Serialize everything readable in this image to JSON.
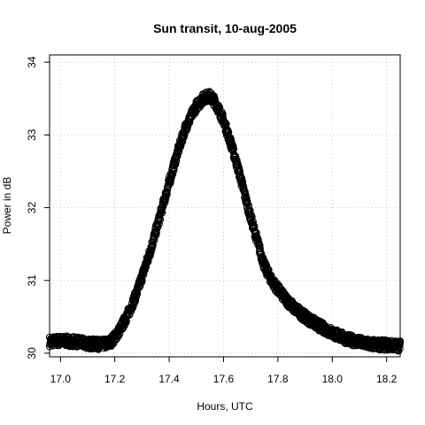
{
  "chart_data": {
    "type": "scatter",
    "title": "Sun transit, 10-aug-2005",
    "xlabel": "Hours, UTC",
    "ylabel": "Power in dB",
    "xlim": [
      16.96,
      18.25
    ],
    "ylim": [
      29.95,
      34.1
    ],
    "xticks": [
      "17.0",
      "17.2",
      "17.4",
      "17.6",
      "17.8",
      "18.0",
      "18.2"
    ],
    "yticks": [
      "30",
      "31",
      "32",
      "33",
      "34"
    ],
    "grid": true,
    "marker": "open-circle",
    "color": "#000000",
    "curve_points": [
      {
        "x": 16.96,
        "y": 30.16
      },
      {
        "x": 17.0,
        "y": 30.17
      },
      {
        "x": 17.05,
        "y": 30.16
      },
      {
        "x": 17.1,
        "y": 30.13
      },
      {
        "x": 17.15,
        "y": 30.12
      },
      {
        "x": 17.18,
        "y": 30.14
      },
      {
        "x": 17.2,
        "y": 30.22
      },
      {
        "x": 17.22,
        "y": 30.33
      },
      {
        "x": 17.25,
        "y": 30.55
      },
      {
        "x": 17.28,
        "y": 30.82
      },
      {
        "x": 17.3,
        "y": 31.05
      },
      {
        "x": 17.33,
        "y": 31.4
      },
      {
        "x": 17.36,
        "y": 31.8
      },
      {
        "x": 17.4,
        "y": 32.35
      },
      {
        "x": 17.43,
        "y": 32.75
      },
      {
        "x": 17.46,
        "y": 33.1
      },
      {
        "x": 17.5,
        "y": 33.4
      },
      {
        "x": 17.53,
        "y": 33.52
      },
      {
        "x": 17.55,
        "y": 33.53
      },
      {
        "x": 17.57,
        "y": 33.45
      },
      {
        "x": 17.6,
        "y": 33.2
      },
      {
        "x": 17.63,
        "y": 32.85
      },
      {
        "x": 17.66,
        "y": 32.45
      },
      {
        "x": 17.69,
        "y": 32.0
      },
      {
        "x": 17.72,
        "y": 31.6
      },
      {
        "x": 17.75,
        "y": 31.2
      },
      {
        "x": 17.78,
        "y": 30.98
      },
      {
        "x": 17.82,
        "y": 30.78
      },
      {
        "x": 17.86,
        "y": 30.62
      },
      {
        "x": 17.9,
        "y": 30.5
      },
      {
        "x": 17.95,
        "y": 30.38
      },
      {
        "x": 18.0,
        "y": 30.28
      },
      {
        "x": 18.05,
        "y": 30.2
      },
      {
        "x": 18.1,
        "y": 30.15
      },
      {
        "x": 18.15,
        "y": 30.12
      },
      {
        "x": 18.2,
        "y": 30.11
      },
      {
        "x": 18.25,
        "y": 30.1
      }
    ]
  }
}
